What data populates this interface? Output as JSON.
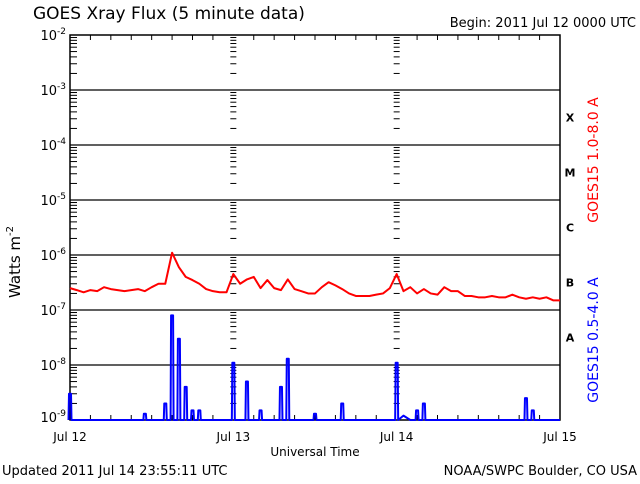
{
  "chart_data": {
    "type": "line",
    "title": "GOES Xray Flux (5 minute data)",
    "begin_label": "Begin:  2011 Jul 12 0000 UTC",
    "xlabel": "Universal Time",
    "ylabel": "Watts m",
    "ylabel_exp": "-2",
    "yscale": "log",
    "ylim": [
      1e-09,
      0.01
    ],
    "y_ticks": [
      {
        "base": "10",
        "exp": "-2"
      },
      {
        "base": "10",
        "exp": "-3"
      },
      {
        "base": "10",
        "exp": "-4"
      },
      {
        "base": "10",
        "exp": "-5"
      },
      {
        "base": "10",
        "exp": "-6"
      },
      {
        "base": "10",
        "exp": "-7"
      },
      {
        "base": "10",
        "exp": "-8"
      },
      {
        "base": "10",
        "exp": "-9"
      }
    ],
    "x_unit": "hours since 2011 Jul 12 00:00 UTC",
    "xlim": [
      0,
      72
    ],
    "x_ticks": [
      {
        "hour": 0,
        "label": "Jul 12"
      },
      {
        "hour": 24,
        "label": "Jul 13"
      },
      {
        "hour": 48,
        "label": "Jul 14"
      },
      {
        "hour": 72,
        "label": "Jul 15"
      }
    ],
    "flare_classes": [
      "X",
      "M",
      "C",
      "B",
      "A"
    ],
    "grid": true,
    "series": [
      {
        "name": "GOES15 1.0-8.0 A",
        "color": "#ff0000",
        "scale": 1e-07,
        "values": [
          2.5,
          2.3,
          2.1,
          2.3,
          2.2,
          2.6,
          2.4,
          2.3,
          2.2,
          2.3,
          2.4,
          2.2,
          2.6,
          3.0,
          3.0,
          11,
          6,
          4,
          3.5,
          3,
          2.4,
          2.2,
          2.1,
          2.1,
          4.5,
          3,
          3.6,
          4,
          2.5,
          3.5,
          2.5,
          2.3,
          3.6,
          2.4,
          2.2,
          2.0,
          2.0,
          2.6,
          3.2,
          2.8,
          2.4,
          2.0,
          1.8,
          1.8,
          1.8,
          1.9,
          2.0,
          2.5,
          4.5,
          2.2,
          2.6,
          2.0,
          2.4,
          2.0,
          1.9,
          2.6,
          2.2,
          2.2,
          1.8,
          1.8,
          1.7,
          1.7,
          1.8,
          1.7,
          1.7,
          1.9,
          1.7,
          1.6,
          1.7,
          1.6,
          1.7,
          1.5,
          1.5
        ]
      },
      {
        "name": "GOES15 0.5-4.0 A",
        "color": "#0000ff",
        "scale": 1e-09,
        "values": [
          3,
          1,
          1,
          1,
          1,
          1,
          1,
          1,
          1,
          1,
          1,
          1.3,
          1,
          1,
          2,
          80,
          30,
          4,
          1.5,
          1.5,
          1,
          1,
          1,
          1,
          11,
          1,
          5,
          1,
          1.5,
          1,
          1,
          4,
          13,
          1,
          1,
          1,
          1.3,
          1,
          1,
          1,
          2,
          1,
          1,
          1,
          1,
          1,
          1,
          1,
          11,
          1.2,
          1,
          1.5,
          2,
          1,
          1,
          1,
          1,
          1,
          1,
          1,
          1,
          1,
          1,
          1,
          1,
          1,
          1,
          2.5,
          1.5,
          1,
          1,
          1,
          1
        ]
      }
    ]
  },
  "footer": {
    "updated": "Updated 2011 Jul 14 23:55:11 UTC",
    "credit": "NOAA/SWPC Boulder, CO USA"
  }
}
